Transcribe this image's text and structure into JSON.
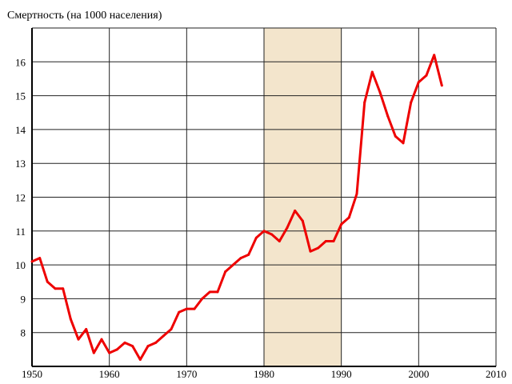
{
  "chart_data": {
    "type": "line",
    "title": "Смертность (на 1000 населения)",
    "xlabel": "",
    "ylabel": "",
    "xlim": [
      1950,
      2010
    ],
    "ylim": [
      7,
      17
    ],
    "x_ticks": [
      1950,
      1960,
      1970,
      1980,
      1990,
      2000,
      2010
    ],
    "y_ticks": [
      8,
      9,
      10,
      11,
      12,
      13,
      14,
      15,
      16
    ],
    "grid": true,
    "highlight_range": {
      "from": 1980,
      "to": 1990,
      "color": "#f3e5cc"
    },
    "series": [
      {
        "name": "Смертность",
        "color": "#ee0000",
        "x": [
          1950,
          1951,
          1952,
          1953,
          1954,
          1955,
          1956,
          1957,
          1958,
          1959,
          1960,
          1961,
          1962,
          1963,
          1964,
          1965,
          1966,
          1967,
          1968,
          1969,
          1970,
          1971,
          1972,
          1973,
          1974,
          1975,
          1976,
          1977,
          1978,
          1979,
          1980,
          1981,
          1982,
          1983,
          1984,
          1985,
          1986,
          1987,
          1988,
          1989,
          1990,
          1991,
          1992,
          1993,
          1994,
          1995,
          1996,
          1997,
          1998,
          1999,
          2000,
          2001,
          2002,
          2003
        ],
        "values": [
          10.1,
          10.2,
          9.5,
          9.3,
          9.3,
          8.4,
          7.8,
          8.1,
          7.4,
          7.8,
          7.4,
          7.5,
          7.7,
          7.6,
          7.2,
          7.6,
          7.7,
          7.9,
          8.1,
          8.6,
          8.7,
          8.7,
          9.0,
          9.2,
          9.2,
          9.8,
          10.0,
          10.2,
          10.3,
          10.8,
          11.0,
          10.9,
          10.7,
          11.1,
          11.6,
          11.3,
          10.4,
          10.5,
          10.7,
          10.7,
          11.2,
          11.4,
          12.1,
          14.8,
          15.7,
          15.1,
          14.4,
          13.8,
          13.6,
          14.8,
          15.4,
          15.6,
          16.2,
          15.3
        ]
      }
    ]
  }
}
